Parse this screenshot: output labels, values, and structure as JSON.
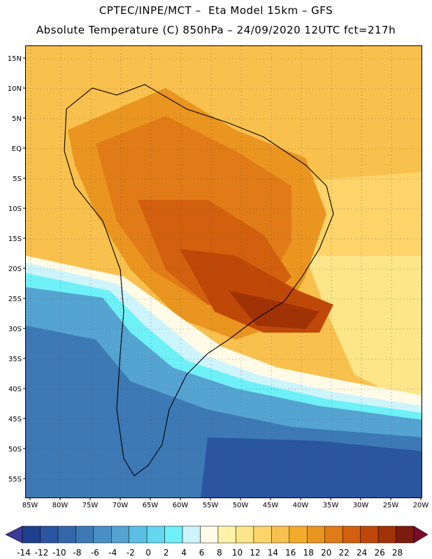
{
  "header": {
    "line1": "CPTEC/INPE/MCT –  Eta Model 15km – GFS",
    "line2": "Absolute Temperature (C) 850hPa – 24/09/2020 12UTC fct=217h"
  },
  "map": {
    "lat_labels": [
      "15N",
      "10N",
      "5N",
      "EQ",
      "5S",
      "10S",
      "15S",
      "20S",
      "25S",
      "30S",
      "35S",
      "40S",
      "45S",
      "50S",
      "55S"
    ],
    "lon_labels": [
      "85W",
      "80W",
      "75W",
      "70W",
      "65W",
      "60W",
      "55W",
      "50W",
      "45W",
      "40W",
      "35W",
      "30W",
      "25W",
      "20W"
    ],
    "lat_range": [
      -57,
      17
    ],
    "lon_range": [
      -85,
      -19
    ]
  },
  "colorbar": {
    "labels": [
      "-14",
      "-12",
      "-10",
      "-8",
      "-6",
      "-4",
      "-2",
      "0",
      "2",
      "4",
      "6",
      "8",
      "10",
      "12",
      "14",
      "16",
      "18",
      "20",
      "22",
      "24",
      "26",
      "28"
    ],
    "colors": [
      "#1f3f8f",
      "#2a559f",
      "#3367a9",
      "#3d79b5",
      "#4a8fc4",
      "#55a3d1",
      "#5bbfe3",
      "#63d8ee",
      "#6ef0f7",
      "#cdf4fb",
      "#fffbe7",
      "#fff2a8",
      "#fde589",
      "#fcd46a",
      "#f8c04d",
      "#f1ac2b",
      "#ea9520",
      "#e07b17",
      "#d2600e",
      "#bf4808",
      "#a13206",
      "#7c1c0e"
    ],
    "left_arrow_color": "#3a3a9a",
    "right_arrow_color": "#7a0a2a"
  }
}
